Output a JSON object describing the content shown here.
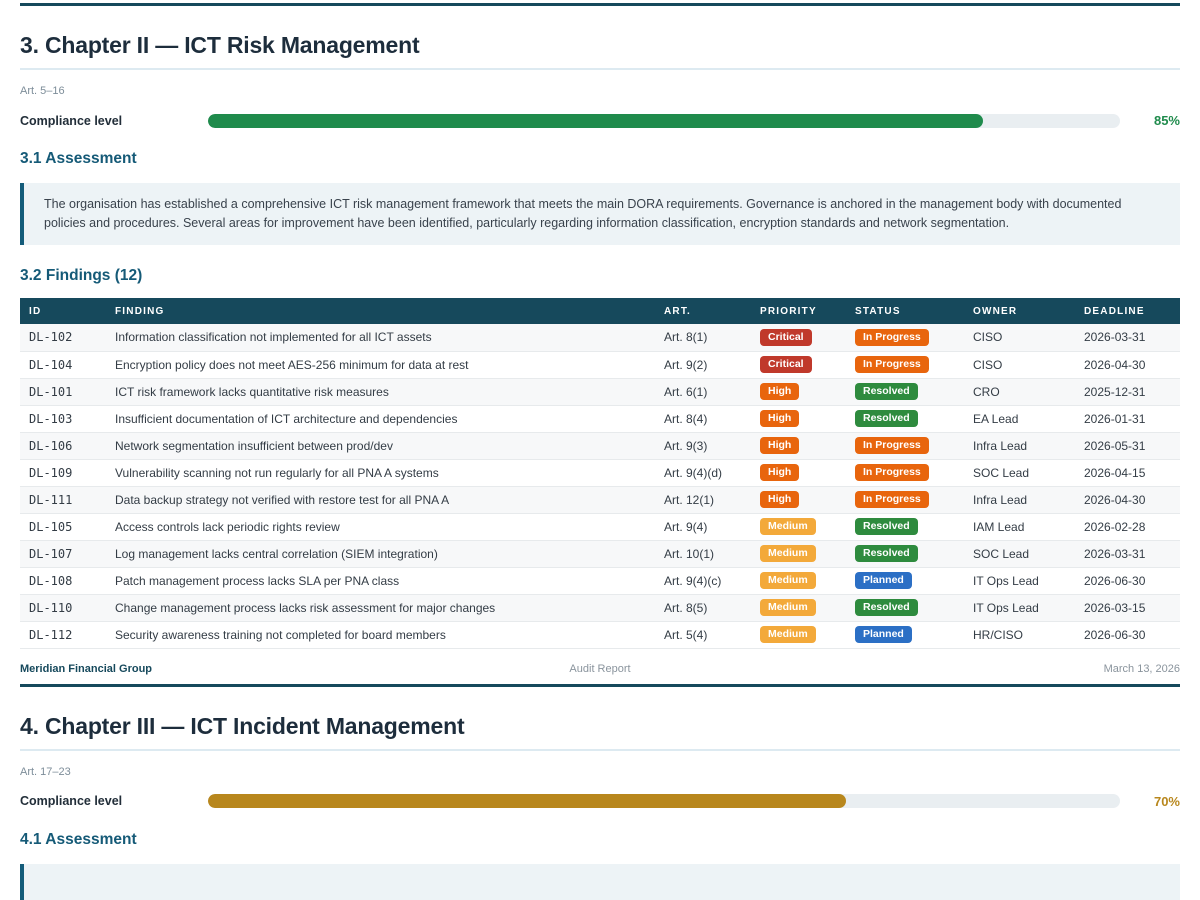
{
  "badge_colors": {
    "Critical": "#c0392b",
    "High": "#e8650d",
    "Medium": "#f3a93a",
    "In Progress": "#e8650d",
    "Resolved": "#2e8b3e",
    "Planned": "#2b6fc5"
  },
  "page1": {
    "heading": "3. Chapter II — ICT Risk Management",
    "articles": "Art. 5–16",
    "compliance": {
      "label": "Compliance level",
      "percent": 85,
      "percent_label": "85%",
      "color": "#1f8b4c"
    },
    "assessment": {
      "heading": "3.1 Assessment",
      "text": "The organisation has established a comprehensive ICT risk management framework that meets the main DORA requirements. Governance is anchored in the management body with documented policies and procedures. Several areas for improvement have been identified, particularly regarding information classification, encryption standards and network segmentation."
    },
    "findings": {
      "heading": "3.2 Findings (12)",
      "columns": [
        "ID",
        "FINDING",
        "ART.",
        "PRIORITY",
        "STATUS",
        "OWNER",
        "DEADLINE"
      ],
      "rows": [
        {
          "id": "DL-102",
          "finding": "Information classification not implemented for all ICT assets",
          "art": "Art. 8(1)",
          "priority": "Critical",
          "status": "In Progress",
          "owner": "CISO",
          "deadline": "2026-03-31"
        },
        {
          "id": "DL-104",
          "finding": "Encryption policy does not meet AES-256 minimum for data at rest",
          "art": "Art. 9(2)",
          "priority": "Critical",
          "status": "In Progress",
          "owner": "CISO",
          "deadline": "2026-04-30"
        },
        {
          "id": "DL-101",
          "finding": "ICT risk framework lacks quantitative risk measures",
          "art": "Art. 6(1)",
          "priority": "High",
          "status": "Resolved",
          "owner": "CRO",
          "deadline": "2025-12-31"
        },
        {
          "id": "DL-103",
          "finding": "Insufficient documentation of ICT architecture and dependencies",
          "art": "Art. 8(4)",
          "priority": "High",
          "status": "Resolved",
          "owner": "EA Lead",
          "deadline": "2026-01-31"
        },
        {
          "id": "DL-106",
          "finding": "Network segmentation insufficient between prod/dev",
          "art": "Art. 9(3)",
          "priority": "High",
          "status": "In Progress",
          "owner": "Infra Lead",
          "deadline": "2026-05-31"
        },
        {
          "id": "DL-109",
          "finding": "Vulnerability scanning not run regularly for all PNA A systems",
          "art": "Art. 9(4)(d)",
          "priority": "High",
          "status": "In Progress",
          "owner": "SOC Lead",
          "deadline": "2026-04-15"
        },
        {
          "id": "DL-111",
          "finding": "Data backup strategy not verified with restore test for all PNA A",
          "art": "Art. 12(1)",
          "priority": "High",
          "status": "In Progress",
          "owner": "Infra Lead",
          "deadline": "2026-04-30"
        },
        {
          "id": "DL-105",
          "finding": "Access controls lack periodic rights review",
          "art": "Art. 9(4)",
          "priority": "Medium",
          "status": "Resolved",
          "owner": "IAM Lead",
          "deadline": "2026-02-28"
        },
        {
          "id": "DL-107",
          "finding": "Log management lacks central correlation (SIEM integration)",
          "art": "Art. 10(1)",
          "priority": "Medium",
          "status": "Resolved",
          "owner": "SOC Lead",
          "deadline": "2026-03-31"
        },
        {
          "id": "DL-108",
          "finding": "Patch management process lacks SLA per PNA class",
          "art": "Art. 9(4)(c)",
          "priority": "Medium",
          "status": "Planned",
          "owner": "IT Ops Lead",
          "deadline": "2026-06-30"
        },
        {
          "id": "DL-110",
          "finding": "Change management process lacks risk assessment for major changes",
          "art": "Art. 8(5)",
          "priority": "Medium",
          "status": "Resolved",
          "owner": "IT Ops Lead",
          "deadline": "2026-03-15"
        },
        {
          "id": "DL-112",
          "finding": "Security awareness training not completed for board members",
          "art": "Art. 5(4)",
          "priority": "Medium",
          "status": "Planned",
          "owner": "HR/CISO",
          "deadline": "2026-06-30"
        }
      ]
    },
    "footer": {
      "company": "Meridian Financial Group",
      "doc_type": "Audit Report",
      "date": "March 13, 2026"
    }
  },
  "page2": {
    "heading": "4. Chapter III — ICT Incident Management",
    "articles": "Art. 17–23",
    "compliance": {
      "label": "Compliance level",
      "percent": 70,
      "percent_label": "70%",
      "color": "#b8871d"
    },
    "assessment": {
      "heading": "4.1 Assessment"
    }
  }
}
